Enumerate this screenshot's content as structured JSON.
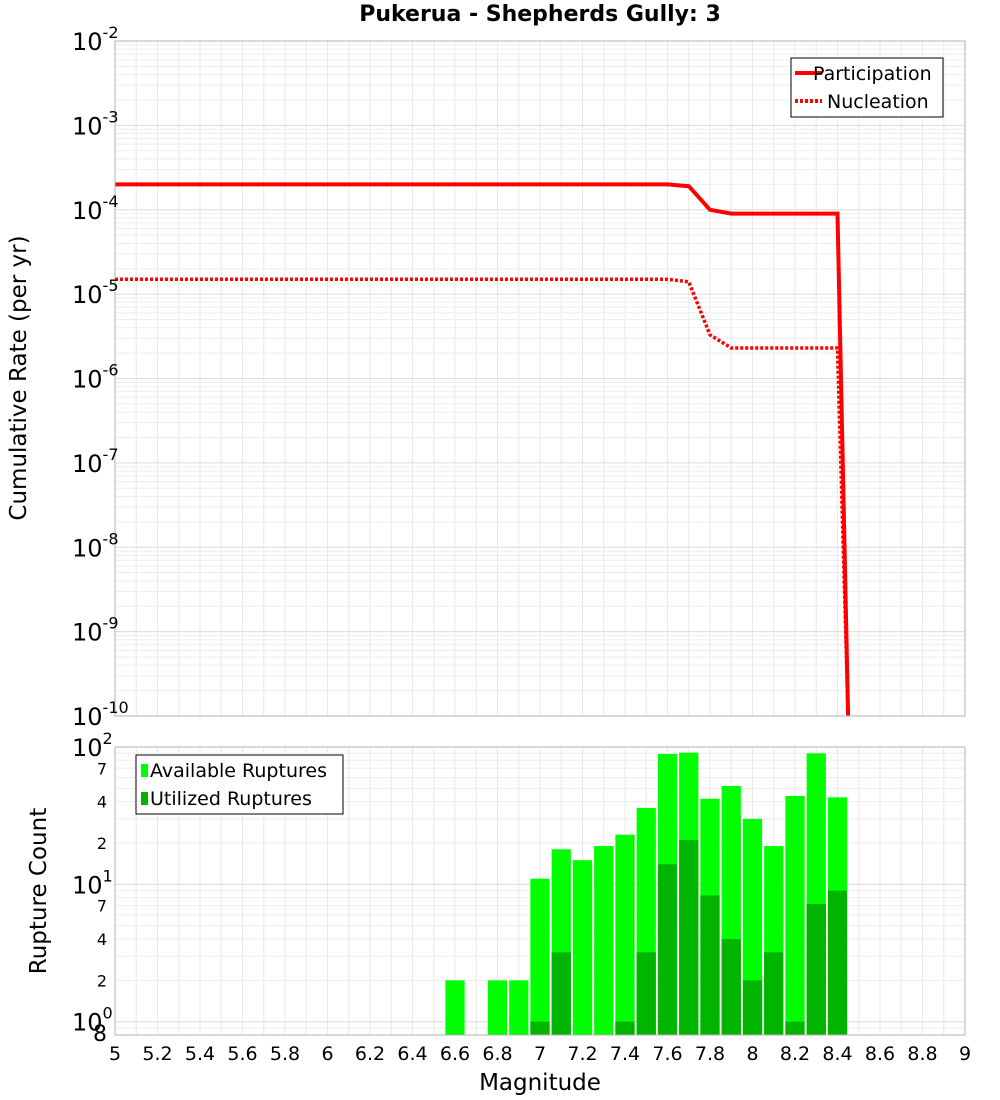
{
  "chart_data": [
    {
      "type": "line",
      "title": "Pukerua - Shepherds Gully: 3",
      "xlabel": "",
      "ylabel": "Cumulative Rate (per yr)",
      "xlim": [
        5,
        9
      ],
      "ylim": [
        1e-10,
        0.01
      ],
      "yscale": "log",
      "grid": true,
      "legend_position": "top-right",
      "y_tick_labels": [
        {
          "base": "10",
          "exp": "-10",
          "value": 1e-10
        },
        {
          "base": "10",
          "exp": "-9",
          "value": 1e-09
        },
        {
          "base": "10",
          "exp": "-8",
          "value": 1e-08
        },
        {
          "base": "10",
          "exp": "-7",
          "value": 1e-07
        },
        {
          "base": "10",
          "exp": "-6",
          "value": 1e-06
        },
        {
          "base": "10",
          "exp": "-5",
          "value": 1e-05
        },
        {
          "base": "10",
          "exp": "-4",
          "value": 0.0001
        },
        {
          "base": "10",
          "exp": "-3",
          "value": 0.001
        },
        {
          "base": "10",
          "exp": "-2",
          "value": 0.01
        }
      ],
      "series": [
        {
          "name": "Participation",
          "color": "#ff0000",
          "style": "solid",
          "x": [
            5.0,
            7.6,
            7.7,
            7.8,
            7.9,
            8.0,
            8.1,
            8.2,
            8.3,
            8.4,
            8.45
          ],
          "y": [
            0.0002,
            0.0002,
            0.00019,
            0.0001,
            9e-05,
            9e-05,
            9e-05,
            9e-05,
            9e-05,
            9e-05,
            1e-10
          ]
        },
        {
          "name": "Nucleation",
          "color": "#ff0000",
          "style": "dotted",
          "x": [
            5.0,
            7.6,
            7.7,
            7.8,
            7.9,
            8.0,
            8.1,
            8.2,
            8.3,
            8.4,
            8.45
          ],
          "y": [
            1.5e-05,
            1.5e-05,
            1.4e-05,
            3.3e-06,
            2.3e-06,
            2.3e-06,
            2.3e-06,
            2.3e-06,
            2.3e-06,
            2.3e-06,
            1e-10
          ]
        }
      ]
    },
    {
      "type": "bar",
      "xlabel": "Magnitude",
      "ylabel": "Rupture Count",
      "xlim": [
        5,
        9
      ],
      "ylim": [
        0.8,
        100
      ],
      "yscale": "log",
      "grid": true,
      "legend_position": "top-left",
      "x_ticks": [
        "5",
        "5.2",
        "5.4",
        "5.6",
        "5.8",
        "6",
        "6.2",
        "6.4",
        "6.6",
        "6.8",
        "7",
        "7.2",
        "7.4",
        "7.6",
        "7.8",
        "8",
        "8.2",
        "8.4",
        "8.6",
        "8.8",
        "9"
      ],
      "y_tick_labels": [
        {
          "base": "10",
          "exp": "0",
          "value": 1
        },
        {
          "base": "10",
          "exp": "1",
          "value": 10
        },
        {
          "base": "10",
          "exp": "2",
          "value": 100
        }
      ],
      "y_minor_labels": [
        {
          "label": "8",
          "value": 0.8
        },
        {
          "label": "2",
          "value": 2
        },
        {
          "label": "4",
          "value": 4
        },
        {
          "label": "7",
          "value": 7
        },
        {
          "label": "2",
          "value": 20
        },
        {
          "label": "4",
          "value": 40
        },
        {
          "label": "7",
          "value": 70
        }
      ],
      "bar_centers": [
        6.6,
        6.8,
        6.9,
        7.0,
        7.1,
        7.2,
        7.3,
        7.4,
        7.5,
        7.6,
        7.7,
        7.8,
        7.9,
        8.0,
        8.1,
        8.2,
        8.3,
        8.4,
        8.5
      ],
      "series": [
        {
          "name": "Available Ruptures",
          "color": "#00ff00",
          "values": [
            2,
            2,
            2,
            11,
            18,
            15,
            19,
            23,
            36,
            89,
            91,
            42,
            52,
            30,
            19,
            44,
            90,
            43,
            0
          ]
        },
        {
          "name": "Utilized Ruptures",
          "color": "#00b400",
          "values": [
            0,
            0,
            0,
            1,
            3.2,
            0,
            0,
            1,
            3.2,
            14,
            21,
            8.3,
            4,
            2,
            3.2,
            1,
            7.2,
            9,
            0
          ]
        }
      ]
    }
  ]
}
